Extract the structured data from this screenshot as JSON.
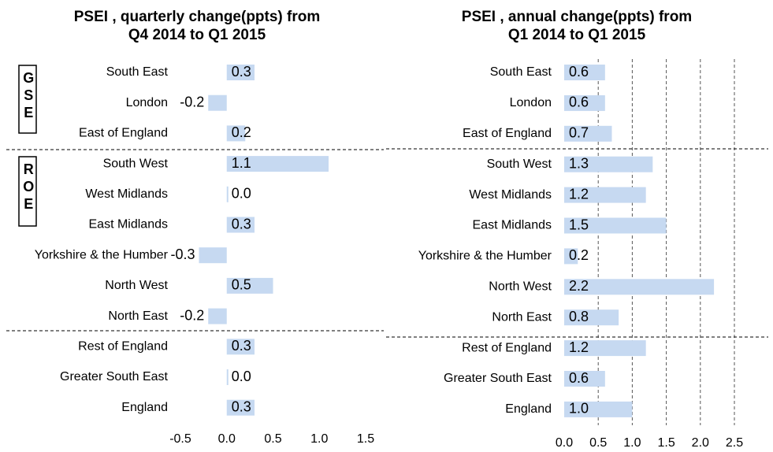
{
  "chart_data": [
    {
      "type": "bar",
      "orientation": "horizontal",
      "title": [
        "PSEI , quarterly change(ppts) from",
        "Q4 2014 to Q1 2015"
      ],
      "categories": [
        "South East",
        "London",
        "East of England",
        "South West",
        "West Midlands",
        "East Midlands",
        "Yorkshire & the Humber",
        "North West",
        "North East",
        "Rest of England",
        "Greater South East",
        "England"
      ],
      "values": [
        0.3,
        -0.2,
        0.2,
        1.1,
        0.0,
        0.3,
        -0.3,
        0.5,
        -0.2,
        0.3,
        0.0,
        0.3
      ],
      "value_labels": [
        "0.3",
        "-0.2",
        "0.2",
        "1.1",
        "0.0",
        "0.3",
        "-0.3",
        "0.5",
        "-0.2",
        "0.3",
        "0.0",
        "0.3"
      ],
      "color": "#c6d9f1",
      "xlim": [
        -0.5,
        1.5
      ],
      "xticks": [
        {
          "value": -0.5,
          "label": "-0.5"
        },
        {
          "value": 0,
          "label": "0.0"
        },
        {
          "value": 0.5,
          "label": "0.5"
        },
        {
          "value": 1,
          "label": "1.0"
        },
        {
          "value": 1.5,
          "label": "1.5"
        }
      ],
      "grid": false,
      "group_labels": [
        "GSE",
        "ROE"
      ]
    },
    {
      "type": "bar",
      "orientation": "horizontal",
      "title": [
        "PSEI , annual change(ppts) from",
        "Q1 2014 to Q1 2015"
      ],
      "categories": [
        "South East",
        "London",
        "East of England",
        "South West",
        "West Midlands",
        "East Midlands",
        "Yorkshire & the Humber",
        "North West",
        "North East",
        "Rest of England",
        "Greater South East",
        "England"
      ],
      "values": [
        0.6,
        0.6,
        0.7,
        1.3,
        1.2,
        1.5,
        0.2,
        2.2,
        0.8,
        1.2,
        0.6,
        1.0
      ],
      "value_labels": [
        "0.6",
        "0.6",
        "0.7",
        "1.3",
        "1.2",
        "1.5",
        "0.2",
        "2.2",
        "0.8",
        "1.2",
        "0.6",
        "1.0"
      ],
      "color": "#c6d9f1",
      "xlim": [
        0,
        2.5
      ],
      "xticks": [
        {
          "value": 0,
          "label": "0.0"
        },
        {
          "value": 0.5,
          "label": "0.5"
        },
        {
          "value": 1,
          "label": "1.0"
        },
        {
          "value": 1.5,
          "label": "1.5"
        },
        {
          "value": 2,
          "label": "2.0"
        },
        {
          "value": 2.5,
          "label": "2.5"
        }
      ],
      "grid": true
    }
  ]
}
